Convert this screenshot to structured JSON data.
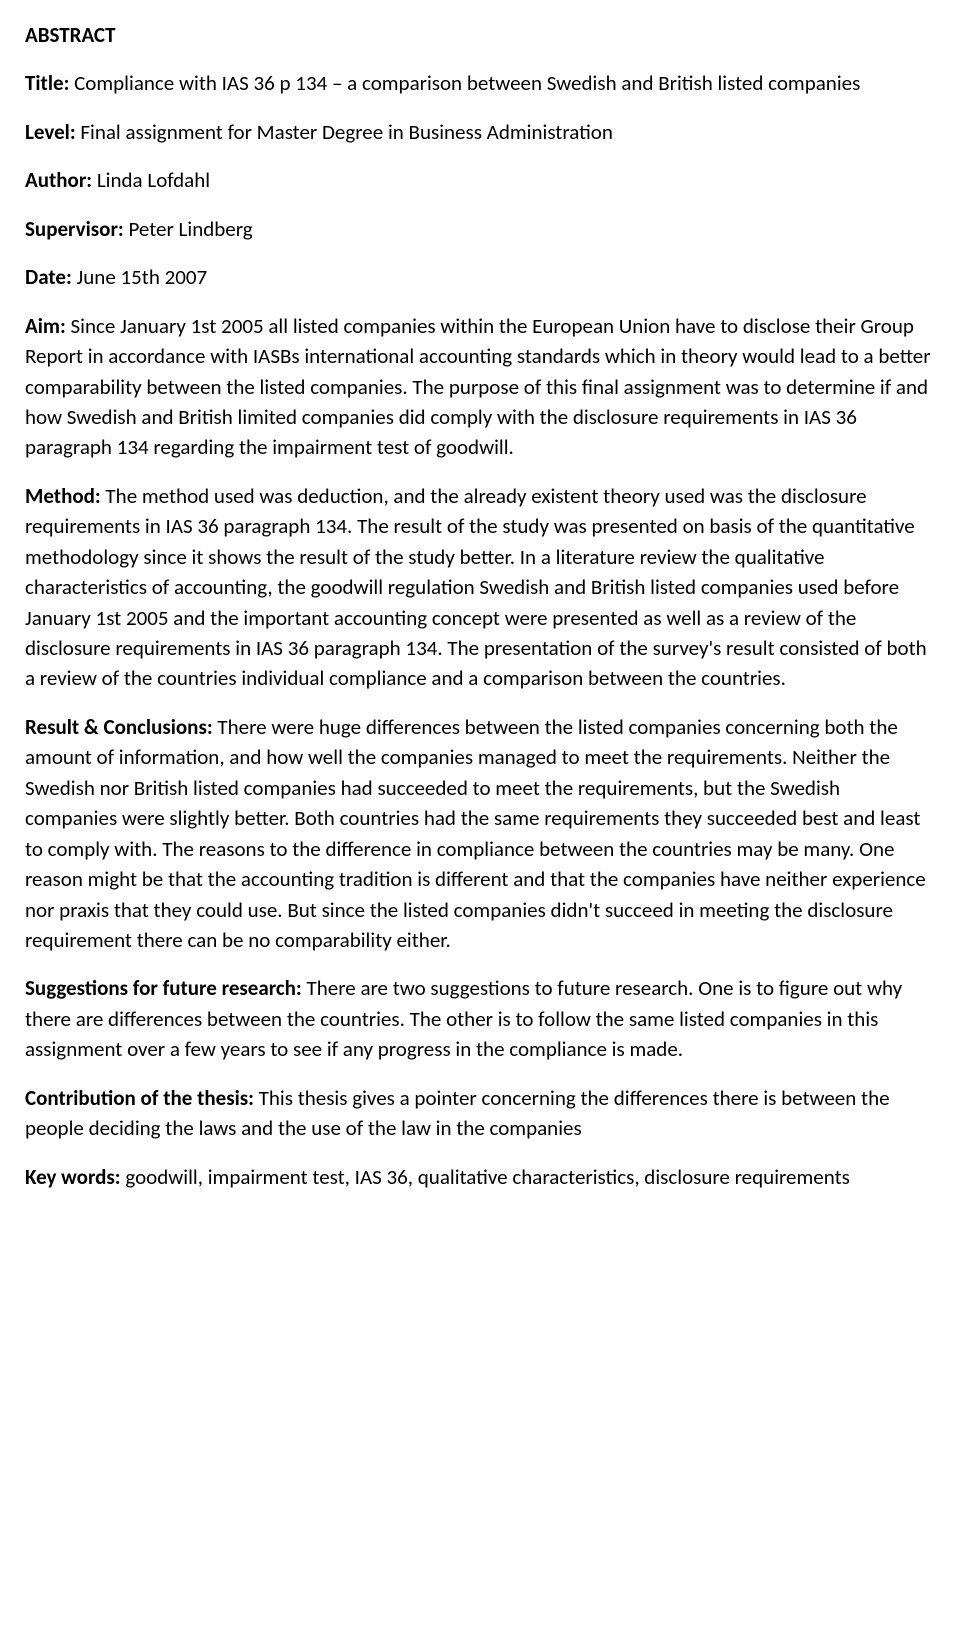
{
  "abstract": {
    "heading": "ABSTRACT",
    "title_label": "Title:",
    "title_text": " Compliance with IAS 36 p 134 – a comparison between Swedish and British listed companies",
    "level_label": "Level:",
    "level_text": " Final assignment for Master Degree in Business Administration",
    "author_label": "Author:",
    "author_text": " Linda Lofdahl",
    "supervisor_label": "Supervisor:",
    "supervisor_text": " Peter Lindberg",
    "date_label": "Date:",
    "date_text": " June 15th 2007",
    "aim_label": "Aim:",
    "aim_text": " Since January 1st 2005 all listed companies within the European Union have to disclose their Group Report in accordance with IASBs international accounting standards which in theory would lead to a better comparability between the listed companies. The purpose of this final assignment was to determine if and how Swedish and British limited companies did comply with the disclosure requirements in IAS 36 paragraph 134 regarding the impairment test of goodwill.",
    "method_label": "Method:",
    "method_text": " The method used was deduction, and the already existent theory used was the disclosure requirements in IAS 36 paragraph 134. The result of the study was presented on basis of the quantitative methodology since it shows the result of the study better. In a literature review the qualitative characteristics of accounting, the goodwill regulation Swedish and British listed companies used before January 1st 2005 and the important accounting concept were presented as well as a review of the disclosure requirements in IAS 36 paragraph 134. The presentation of the survey's result consisted of both a review of the countries individual compliance and a comparison between the countries.",
    "result_label": "Result & Conclusions:",
    "result_text": " There were huge differences between the listed companies concerning both the amount of information, and how well the companies managed to meet the requirements. Neither the Swedish nor British listed companies had succeeded to meet the requirements, but the Swedish companies were slightly better. Both countries had the same requirements they succeeded best and least to comply with. The reasons to the difference in compliance between the countries may be many. One reason might be that the accounting tradition is different and that the companies have neither experience nor praxis that they could use. But since the listed companies didn't succeed in meeting the disclosure requirement there can be no comparability either.",
    "suggestions_label": "Suggestions for future research:",
    "suggestions_text": " There are two suggestions to future research. One is to figure out why there are differences between the countries. The other is to follow the same listed companies in this assignment over a few years to see if any progress in the compliance is made.",
    "contribution_label": "Contribution of the thesis:",
    "contribution_text": "  This thesis gives a pointer concerning the differences there is between the people deciding the laws and the use of the law in the companies",
    "keywords_label": "Key words:",
    "keywords_text": " goodwill, impairment test, IAS 36, qualitative characteristics, disclosure requirements"
  }
}
